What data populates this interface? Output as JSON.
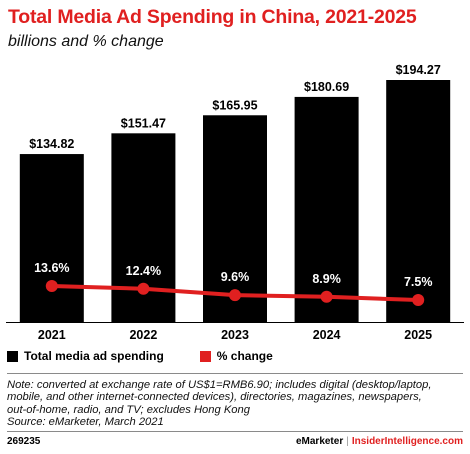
{
  "header": {
    "title": "Total Media Ad Spending in China, 2021-2025",
    "subtitle": "billions and % change"
  },
  "chart_data": {
    "type": "bar",
    "categories": [
      "2021",
      "2022",
      "2023",
      "2024",
      "2025"
    ],
    "series": [
      {
        "name": "Total media ad spending",
        "type": "bar",
        "values": [
          134.82,
          151.47,
          165.95,
          180.69,
          194.27
        ],
        "labels": [
          "$134.82",
          "$151.47",
          "$165.95",
          "$180.69",
          "$194.27"
        ],
        "color": "#000000"
      },
      {
        "name": "% change",
        "type": "line",
        "values": [
          13.6,
          12.4,
          9.6,
          8.9,
          7.5
        ],
        "labels": [
          "13.6%",
          "12.4%",
          "9.6%",
          "8.9%",
          "7.5%"
        ],
        "color": "#e02020"
      }
    ],
    "legend_position": "bottom-left",
    "grid": false
  },
  "legend": {
    "bar_label": "Total media ad spending",
    "line_label": "% change",
    "bar_color": "#000000",
    "line_color": "#e02020"
  },
  "note": {
    "line1": "Note: converted at exchange rate of US$1=RMB6.90; includes digital (desktop/laptop,",
    "line2": "mobile, and other internet-connected devices), directories, magazines, newspapers,",
    "line3": "out-of-home, radio, and TV; excludes Hong Kong",
    "source": "Source: eMarketer, March 2021"
  },
  "footer": {
    "chart_id": "269235",
    "brand": "eMarketer",
    "separator": "|",
    "site": "InsiderIntelligence.com"
  }
}
